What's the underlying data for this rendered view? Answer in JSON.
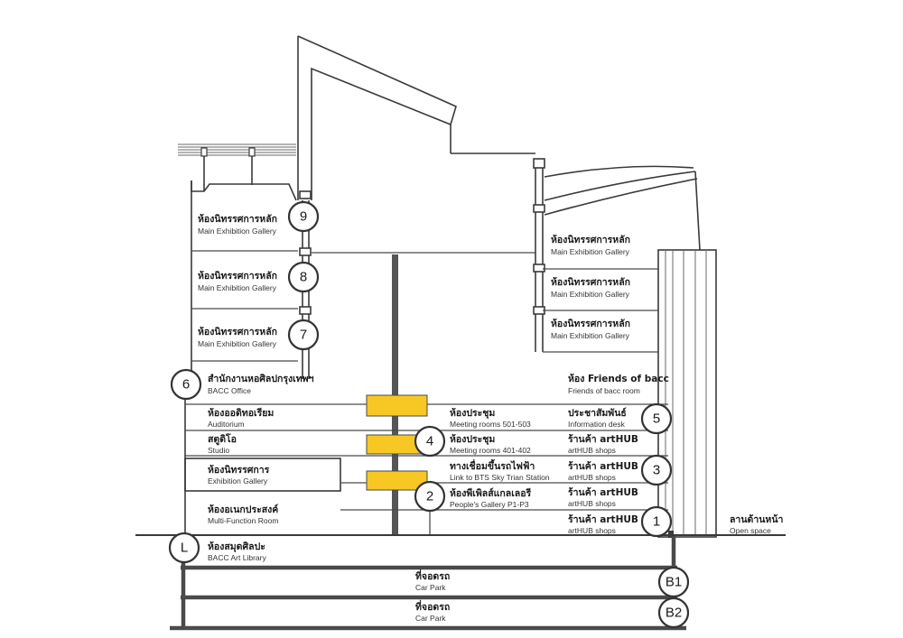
{
  "colors": {
    "line": "#3a3a3a",
    "bridge": "#f7c724",
    "text": "#1a1a1a",
    "background": "#ffffff"
  },
  "floors": {
    "f9": "9",
    "f8": "8",
    "f7": "7",
    "f6": "6",
    "f5": "5",
    "f4": "4",
    "f3": "3",
    "f2": "2",
    "f1": "1",
    "l": "L",
    "b1": "B1",
    "b2": "B2"
  },
  "rooms": {
    "main_gallery_9": {
      "th": "ห้องนิทรรศการหลัก",
      "en": "Main Exhibition Gallery"
    },
    "main_gallery_8": {
      "th": "ห้องนิทรรศการหลัก",
      "en": "Main Exhibition Gallery"
    },
    "main_gallery_7": {
      "th": "ห้องนิทรรศการหลัก",
      "en": "Main Exhibition Gallery"
    },
    "right_gallery_9": {
      "th": "ห้องนิทรรศการหลัก",
      "en": "Main Exhibition Gallery"
    },
    "right_gallery_8": {
      "th": "ห้องนิทรรศการหลัก",
      "en": "Main Exhibition Gallery"
    },
    "right_gallery_7": {
      "th": "ห้องนิทรรศการหลัก",
      "en": "Main Exhibition Gallery"
    },
    "bacc_office": {
      "th": "สำนักงานหอศิลปกรุงเทพฯ",
      "en": "BACC Office"
    },
    "friends_room": {
      "th": "ห้อง Friends of bacc",
      "en": "Friends of bacc room"
    },
    "auditorium": {
      "th": "ห้องออดิทอเรียม",
      "en": "Auditorium"
    },
    "meeting_501": {
      "th": "ห้องประชุม",
      "en": "Meeting rooms 501-503"
    },
    "info_desk": {
      "th": "ประชาสัมพันธ์",
      "en": "Information desk"
    },
    "studio": {
      "th": "สตูดิโอ",
      "en": "Studio"
    },
    "meeting_401": {
      "th": "ห้องประชุม",
      "en": "Meeting rooms 401-402"
    },
    "arthub_4": {
      "th": "ร้านค้า artHUB",
      "en": "artHUB shops"
    },
    "exhibition_gallery": {
      "th": "ห้องนิทรรศการ",
      "en": "Exhibition Gallery"
    },
    "bts_link": {
      "th": "ทางเชื่อมขึ้นรถไฟฟ้า",
      "en": "Link to BTS Sky Trian Station"
    },
    "arthub_3": {
      "th": "ร้านค้า artHUB",
      "en": "artHUB shops"
    },
    "peoples_gallery": {
      "th": "ห้องพีเพิลส์แกลเลอรี",
      "en": "People's Gallery P1-P3"
    },
    "arthub_2": {
      "th": "ร้านค้า artHUB",
      "en": "artHUB shops"
    },
    "multi_function": {
      "th": "ห้องอเนกประสงค์",
      "en": "Multi-Function Room"
    },
    "arthub_1": {
      "th": "ร้านค้า artHUB",
      "en": "artHUB shops"
    },
    "open_space": {
      "th": "ลานด้านหน้า",
      "en": "Open space"
    },
    "art_library": {
      "th": "ห้องสมุดศิลปะ",
      "en": "BACC Art Library"
    },
    "car_park_b1": {
      "th": "ที่จอดรถ",
      "en": "Car Park"
    },
    "car_park_b2": {
      "th": "ที่จอดรถ",
      "en": "Car Park"
    }
  }
}
